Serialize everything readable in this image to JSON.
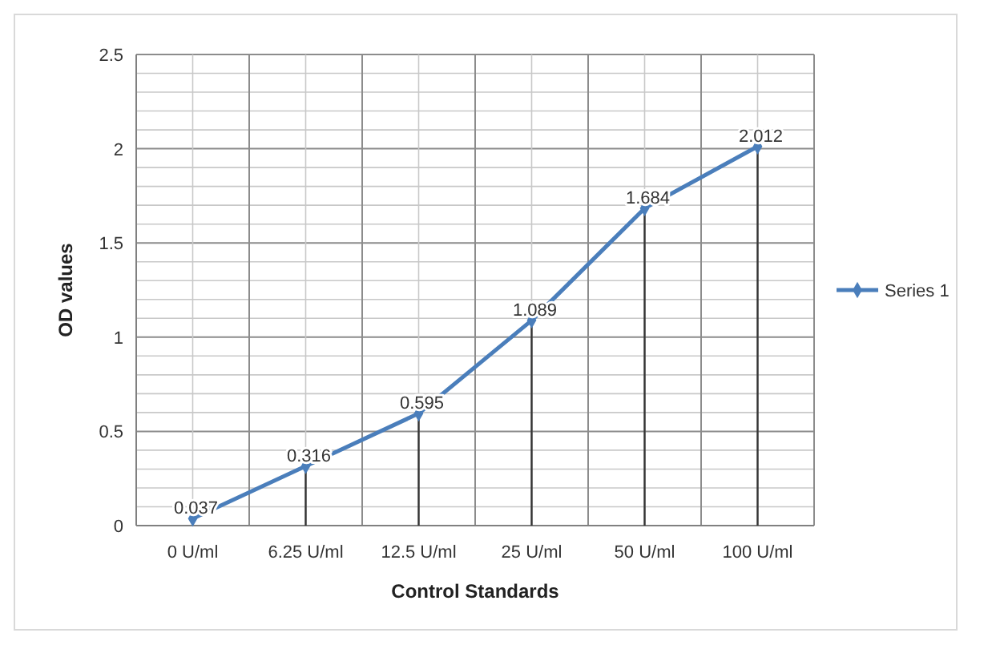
{
  "chart_data": {
    "type": "line",
    "xlabel": "Control Standards",
    "ylabel": "OD values",
    "categories": [
      "0 U/ml",
      "6.25 U/ml",
      "12.5 U/ml",
      "25 U/ml",
      "50 U/ml",
      "100 U/ml"
    ],
    "series": [
      {
        "name": "Series 1",
        "color": "#4a7ebb",
        "values": [
          0.037,
          0.316,
          0.595,
          1.089,
          1.684,
          2.012
        ],
        "errors": [
          null,
          [
            0,
            0.316
          ],
          [
            0,
            0.595
          ],
          [
            0,
            1.089
          ],
          [
            0,
            1.684
          ],
          [
            0,
            2.012
          ]
        ]
      }
    ],
    "ylim": [
      0,
      2.5
    ],
    "yticks": [
      0,
      0.5,
      1,
      1.5,
      2,
      2.5
    ],
    "grid": true,
    "legend": "right",
    "marker": "diamond",
    "line_style": "solid",
    "data_labels": true
  }
}
